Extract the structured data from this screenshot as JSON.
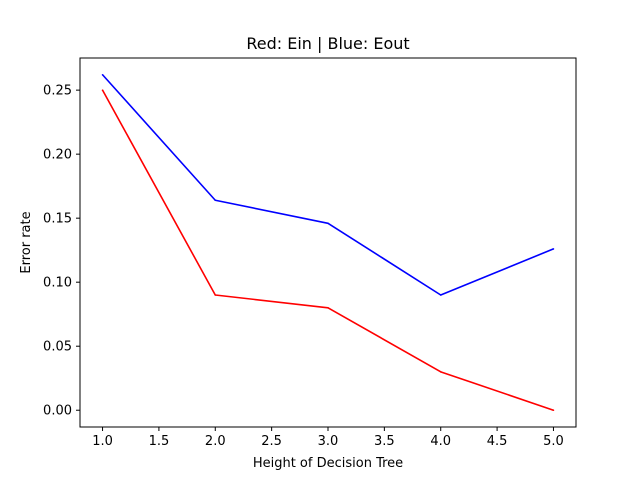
{
  "chart_data": {
    "type": "line",
    "title": "Red: Ein | Blue: Eout",
    "xlabel": "Height of Decision Tree",
    "ylabel": "Error rate",
    "x": [
      1.0,
      2.0,
      3.0,
      4.0,
      5.0
    ],
    "series": [
      {
        "color": "#ff0000",
        "values": [
          0.25,
          0.09,
          0.08,
          0.03,
          0.0
        ]
      },
      {
        "color": "#0000ff",
        "values": [
          0.262,
          0.164,
          0.146,
          0.09,
          0.126
        ]
      }
    ],
    "xlim": [
      0.8,
      5.2
    ],
    "ylim": [
      -0.0131,
      0.2751
    ],
    "xticks": [
      1.0,
      1.5,
      2.0,
      2.5,
      3.0,
      3.5,
      4.0,
      4.5,
      5.0
    ],
    "xtick_labels": [
      "1.0",
      "1.5",
      "2.0",
      "2.5",
      "3.0",
      "3.5",
      "4.0",
      "4.5",
      "5.0"
    ],
    "yticks": [
      0.0,
      0.05,
      0.1,
      0.15,
      0.2,
      0.25
    ],
    "ytick_labels": [
      "0.00",
      "0.05",
      "0.10",
      "0.15",
      "0.20",
      "0.25"
    ],
    "grid": false,
    "legend": "none"
  }
}
